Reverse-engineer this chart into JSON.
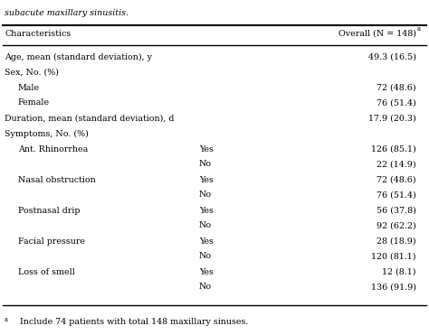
{
  "title_text": "subacute maxillary sinusitis.",
  "header_col1": "Characteristics",
  "header_col2": "Overall (N = 148)",
  "header_col2_superscript": "a",
  "rows": [
    {
      "col1": "Age, mean (standard deviation), y",
      "col2": "",
      "col3": "49.3 (16.5)",
      "indent": 0
    },
    {
      "col1": "Sex, No. (%)",
      "col2": "",
      "col3": "",
      "indent": 0
    },
    {
      "col1": "Male",
      "col2": "",
      "col3": "72 (48.6)",
      "indent": 1
    },
    {
      "col1": "Female",
      "col2": "",
      "col3": "76 (51.4)",
      "indent": 1
    },
    {
      "col1": "Duration, mean (standard deviation), d",
      "col2": "",
      "col3": "17.9 (20.3)",
      "indent": 0
    },
    {
      "col1": "Symptoms, No. (%)",
      "col2": "",
      "col3": "",
      "indent": 0
    },
    {
      "col1": "Ant. Rhinorrhea",
      "col2": "Yes",
      "col3": "126 (85.1)",
      "indent": 1
    },
    {
      "col1": "",
      "col2": "No",
      "col3": "22 (14.9)",
      "indent": 1
    },
    {
      "col1": "Nasal obstruction",
      "col2": "Yes",
      "col3": "72 (48.6)",
      "indent": 1
    },
    {
      "col1": "",
      "col2": "No",
      "col3": "76 (51.4)",
      "indent": 1
    },
    {
      "col1": "Postnasal drip",
      "col2": "Yes",
      "col3": "56 (37.8)",
      "indent": 1
    },
    {
      "col1": "",
      "col2": "No",
      "col3": "92 (62.2)",
      "indent": 1
    },
    {
      "col1": "Facial pressure",
      "col2": "Yes",
      "col3": "28 (18.9)",
      "indent": 1
    },
    {
      "col1": "",
      "col2": "No",
      "col3": "120 (81.1)",
      "indent": 1
    },
    {
      "col1": "Loss of smell",
      "col2": "Yes",
      "col3": "12 (8.1)",
      "indent": 1
    },
    {
      "col1": "",
      "col2": "No",
      "col3": "136 (91.9)",
      "indent": 1
    }
  ],
  "footnote_super": "a",
  "footnote_text": "  Include 74 patients with total 148 maxillary sinuses.",
  "bg_color": "#ffffff",
  "text_color": "#000000",
  "font_size": 6.8,
  "title_font_size": 6.8
}
